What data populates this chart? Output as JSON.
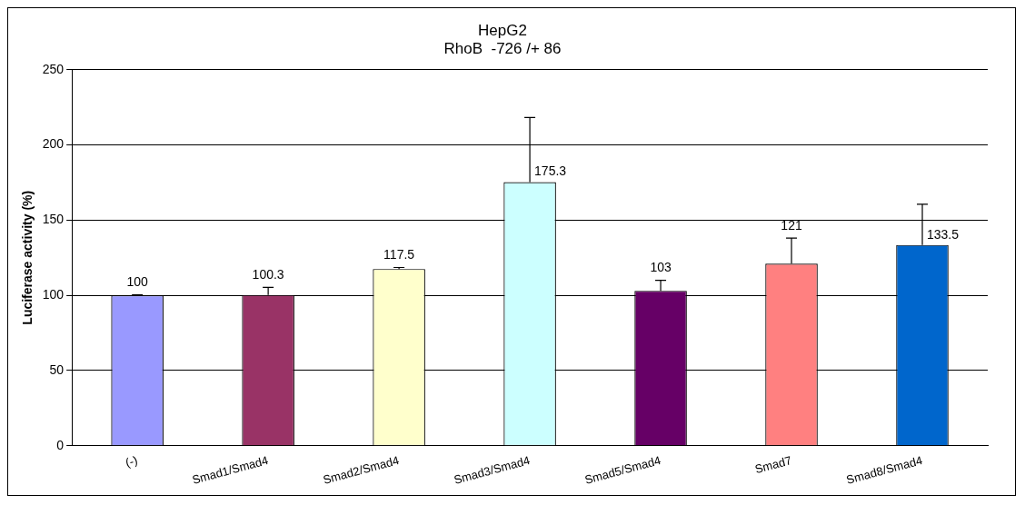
{
  "chart_data": {
    "type": "bar",
    "title": [
      "HepG2",
      "RhoB  -726 /+ 86"
    ],
    "ylabel": "Luciferase activity (%)",
    "categories": [
      "(-)",
      "Smad1/Smad4",
      "Smad2/Smad4",
      "Smad3/Smad4",
      "Smad5/Smad4",
      "Smad7",
      "Smad8/Smad4"
    ],
    "values": [
      100,
      100.3,
      117.5,
      175.3,
      103,
      121,
      133.5
    ],
    "colors": [
      "#9999ff",
      "#993366",
      "#ffffcc",
      "#ccffff",
      "#660066",
      "#ff8080",
      "#0066cc"
    ],
    "errors": [
      0.3,
      5,
      1,
      43,
      7,
      17,
      27
    ],
    "ylim": [
      0,
      250
    ],
    "yticks": [
      0,
      50,
      100,
      150,
      200,
      250
    ],
    "grid": "y",
    "data_labels": true,
    "legend": false
  }
}
